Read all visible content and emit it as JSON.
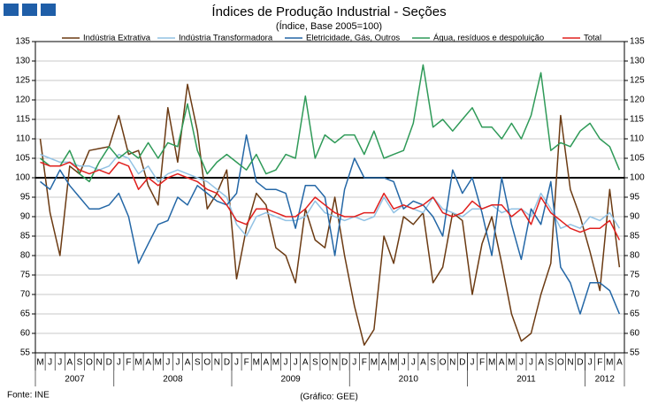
{
  "chart_data": {
    "type": "line",
    "title": "Índices de Produção Industrial - Seções",
    "subtitle": "(Índice, Base 2005=100)",
    "source": "Fonte: INE",
    "credit": "(Gráfico: GEE)",
    "categories": [
      "M",
      "J",
      "J",
      "A",
      "S",
      "O",
      "N",
      "D",
      "J",
      "F",
      "M",
      "A",
      "M",
      "J",
      "J",
      "A",
      "S",
      "O",
      "N",
      "D",
      "J",
      "F",
      "M",
      "A",
      "M",
      "J",
      "J",
      "A",
      "S",
      "O",
      "N",
      "D",
      "J",
      "F",
      "M",
      "A",
      "M",
      "J",
      "J",
      "A",
      "S",
      "O",
      "N",
      "D",
      "J",
      "F",
      "M",
      "A",
      "M",
      "J",
      "J",
      "A",
      "S",
      "O",
      "N",
      "D",
      "J",
      "F",
      "M",
      "A"
    ],
    "years": [
      "2007",
      "2008",
      "2009",
      "2010",
      "2011",
      "2012"
    ],
    "series": [
      {
        "name": "Indústria Extrativa",
        "color": "#6b3a12",
        "values": [
          110,
          91,
          80,
          103,
          101,
          107,
          107.5,
          108,
          116,
          106,
          107,
          98,
          93,
          118,
          104,
          124,
          112,
          92,
          96,
          102,
          74,
          87,
          96,
          93,
          82,
          80,
          73,
          92,
          84,
          82,
          95,
          80,
          67,
          57,
          61,
          85,
          78,
          90,
          88,
          91,
          73,
          77,
          91,
          89,
          70,
          83,
          90,
          78,
          65,
          58,
          60,
          70,
          78,
          116,
          97,
          90,
          81,
          71,
          97,
          77
        ]
      },
      {
        "name": "Indústria Transformadora",
        "color": "#92c2e4",
        "values": [
          106,
          105,
          104,
          104,
          103,
          103,
          102,
          103,
          106,
          105,
          101,
          103,
          99,
          101,
          102,
          101,
          100,
          99,
          97,
          95,
          88,
          85,
          90,
          91,
          90,
          89,
          89,
          90,
          94,
          91,
          90,
          89,
          90,
          89,
          90,
          95,
          91,
          93,
          92,
          91,
          95,
          92,
          91,
          90,
          92,
          92,
          93,
          91,
          92,
          92,
          90,
          96,
          92,
          87,
          88,
          87,
          90,
          89,
          91,
          87
        ]
      },
      {
        "name": "Eletricidade, Gás, Outros",
        "color": "#2467a6",
        "values": [
          99,
          97,
          102,
          98,
          95,
          92,
          92,
          93,
          96,
          90,
          78,
          83,
          88,
          89,
          95,
          93,
          98,
          96,
          94,
          93,
          96,
          111,
          99,
          97,
          97,
          96,
          87,
          98,
          98,
          95,
          80,
          97,
          105,
          100,
          100,
          100,
          99,
          92,
          94,
          93,
          90,
          85,
          102,
          96,
          100,
          91,
          80,
          100,
          88,
          79,
          92,
          88,
          99,
          77,
          73,
          65,
          73,
          73,
          71,
          65
        ]
      },
      {
        "name": "Água, resíduos e despoluição",
        "color": "#2f9a58",
        "values": [
          105,
          103,
          103,
          107,
          101,
          99,
          104,
          108,
          105,
          107,
          105,
          109,
          105,
          109,
          108,
          119,
          107,
          101,
          104,
          106,
          104,
          102,
          106,
          101,
          102,
          106,
          105,
          121,
          105,
          111,
          109,
          111,
          111,
          106,
          112,
          105,
          106,
          107,
          114,
          129,
          113,
          115,
          112,
          115,
          118,
          113,
          113,
          110,
          114,
          110,
          116,
          127,
          107,
          109,
          108,
          112,
          114,
          110,
          108,
          102
        ]
      },
      {
        "name": "Total",
        "color": "#e0201e",
        "values": [
          104,
          103,
          103,
          104,
          102,
          101,
          102,
          101,
          104,
          103,
          97,
          100,
          98,
          100,
          101,
          100,
          99,
          97,
          96,
          93,
          89,
          88,
          92,
          92,
          91,
          90,
          90,
          92,
          95,
          93,
          91,
          90,
          90,
          91,
          91,
          96,
          92,
          93,
          92,
          93,
          95,
          91,
          90,
          91,
          94,
          92,
          93,
          93,
          90,
          92,
          88,
          95,
          91,
          89,
          87,
          86,
          87,
          87,
          89,
          84
        ]
      }
    ],
    "reference_line": 100,
    "ylim": [
      55,
      135
    ],
    "yticks": [
      55,
      60,
      65,
      70,
      75,
      80,
      85,
      90,
      95,
      100,
      105,
      110,
      115,
      120,
      125,
      130,
      135
    ],
    "y2lim": [
      55,
      135
    ],
    "y2ticks": [
      55,
      60,
      65,
      70,
      75,
      80,
      85,
      90,
      95,
      100,
      105,
      110,
      115,
      120,
      125,
      130,
      135
    ],
    "grid": true
  }
}
